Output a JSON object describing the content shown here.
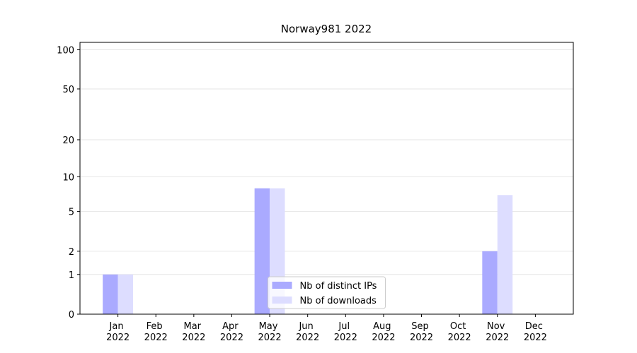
{
  "chart_data": {
    "type": "bar",
    "title": "Norway981 2022",
    "categories": [
      "Jan 2022",
      "Feb 2022",
      "Mar 2022",
      "Apr 2022",
      "May 2022",
      "Jun 2022",
      "Jul 2022",
      "Aug 2022",
      "Sep 2022",
      "Oct 2022",
      "Nov 2022",
      "Dec 2022"
    ],
    "series": [
      {
        "name": "Nb of distinct IPs",
        "color": "#aaaaff",
        "values": [
          1,
          0,
          0,
          0,
          8,
          0,
          0,
          0,
          0,
          0,
          2,
          0
        ]
      },
      {
        "name": "Nb of downloads",
        "color": "#ddddff",
        "values": [
          1,
          0,
          0,
          0,
          8,
          0,
          0,
          0,
          0,
          0,
          7,
          0
        ]
      }
    ],
    "ylim": [
      0,
      114
    ],
    "yticks": [
      0,
      1,
      2,
      5,
      10,
      20,
      50,
      100
    ],
    "yscale": "log1p",
    "grid": true,
    "legend": "lower center"
  }
}
